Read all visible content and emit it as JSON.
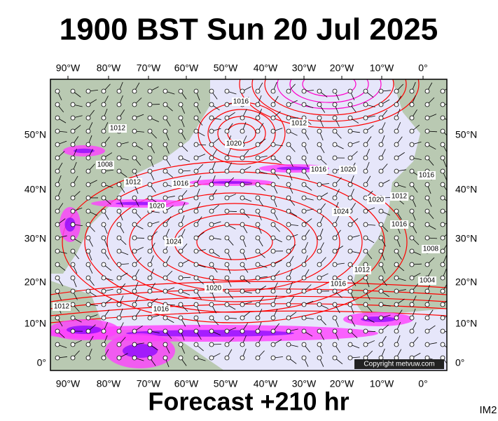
{
  "header": {
    "title": "1900 BST Sun 20 Jul 2025"
  },
  "map": {
    "lon_labels": [
      "90°W",
      "80°W",
      "70°W",
      "60°W",
      "50°W",
      "40°W",
      "30°W",
      "20°W",
      "10°W",
      "0°"
    ],
    "lat_labels": [
      "50°N",
      "40°N",
      "30°N",
      "20°N",
      "10°N",
      "0°"
    ],
    "isobar_labels": [
      "1016",
      "1012",
      "1020",
      "1016",
      "1020",
      "1008",
      "1012",
      "1016",
      "1020",
      "1024",
      "1020",
      "1012",
      "1016",
      "1024",
      "1016",
      "1020",
      "1016",
      "1012",
      "1012",
      "1016",
      "1004",
      "1008",
      "1012"
    ],
    "copyright": "Copyright metvuw.com"
  },
  "footer": {
    "forecast": "Forecast +210 hr",
    "code": "IM2"
  }
}
